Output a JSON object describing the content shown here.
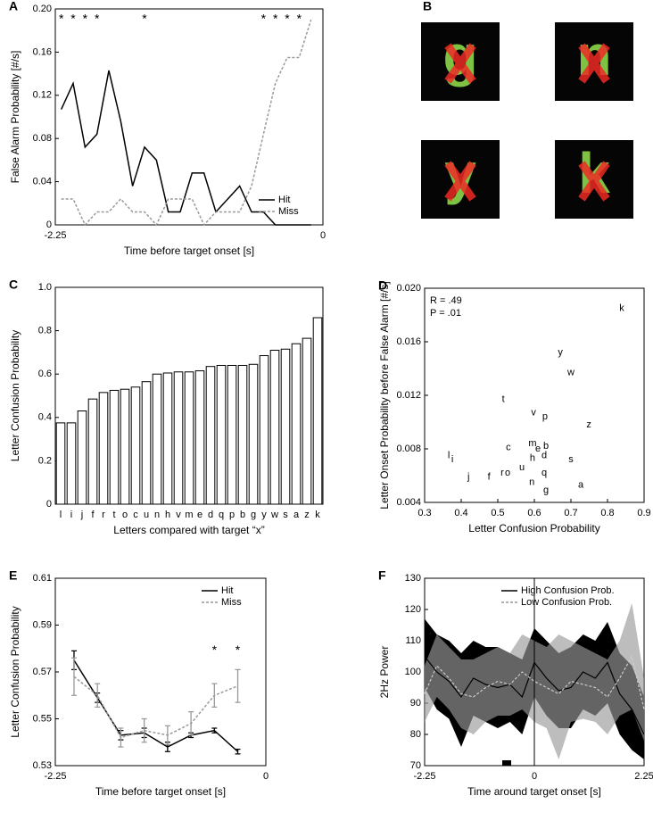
{
  "chart_data": [
    {
      "type": "line",
      "panel": "A",
      "x": [
        -2.2,
        -2.1,
        -2,
        -1.9,
        -1.8,
        -1.7,
        -1.6,
        -1.5,
        -1.4,
        -1.3,
        -1.2,
        -1.1,
        -1,
        -0.9,
        -0.8,
        -0.7,
        -0.6,
        -0.5,
        -0.4,
        -0.3,
        -0.2,
        -0.1
      ],
      "series": [
        {
          "name": "Hit",
          "color": "#000000",
          "style": "solid",
          "values": [
            0.107,
            0.131,
            0.072,
            0.084,
            0.143,
            0.096,
            0.036,
            0.072,
            0.06,
            0.012,
            0.012,
            0.048,
            0.048,
            0.012,
            0.024,
            0.036,
            0.012,
            0.012,
            0,
            0,
            0,
            0
          ]
        },
        {
          "name": "Miss",
          "color": "#999999",
          "style": "dashed",
          "values": [
            0.024,
            0.024,
            0,
            0.012,
            0.012,
            0.024,
            0.012,
            0.012,
            0,
            0.024,
            0.024,
            0.024,
            0,
            0.012,
            0.012,
            0.012,
            0.036,
            0.084,
            0.131,
            0.155,
            0.155,
            0.19
          ]
        }
      ],
      "xlim": [
        -2.25,
        0
      ],
      "ylim": [
        0,
        0.2
      ],
      "xticks": [
        -2.25,
        0
      ],
      "yticks": [
        0,
        0.04,
        0.08,
        0.12,
        0.16,
        {
          "value": 0.2,
          "label": "0.20"
        }
      ],
      "x_label": "Time before target onset [s]",
      "y_label": "False Alarm Probability [#/s]",
      "legend": "lower right",
      "annotations": [
        {
          "text": "*",
          "x": -2.2
        },
        {
          "text": "*",
          "x": -2.1
        },
        {
          "text": "*",
          "x": -2
        },
        {
          "text": "*",
          "x": -1.9
        },
        {
          "text": "*",
          "x": -1.5
        },
        {
          "text": "*",
          "x": -0.5
        },
        {
          "text": "*",
          "x": -0.4
        },
        {
          "text": "*",
          "x": -0.3
        },
        {
          "text": "*",
          "x": -0.2
        }
      ]
    },
    {
      "type": "image",
      "panel": "B",
      "letters": [
        "g",
        "n",
        "y",
        "k"
      ]
    },
    {
      "type": "bar",
      "panel": "C",
      "categories": [
        "l",
        "i",
        "j",
        "f",
        "r",
        "t",
        "o",
        "c",
        "u",
        "n",
        "h",
        "v",
        "m",
        "e",
        "d",
        "q",
        "p",
        "b",
        "g",
        "y",
        "w",
        "s",
        "a",
        "z",
        "k"
      ],
      "values": [
        0.375,
        0.375,
        0.43,
        0.485,
        0.515,
        0.525,
        0.53,
        0.54,
        0.565,
        0.6,
        0.605,
        0.61,
        0.61,
        0.615,
        0.635,
        0.64,
        0.64,
        0.64,
        0.645,
        0.685,
        0.71,
        0.715,
        0.74,
        0.765,
        0.86
      ],
      "color": "#ffffff",
      "ylim": [
        0,
        1
      ],
      "yticks": [
        0,
        0.2,
        0.4,
        0.6,
        0.8,
        {
          "value": 1,
          "label": "1.0"
        }
      ],
      "x_label": "Letters compared with target “x”",
      "y_label": "Letter Confusion Probability"
    },
    {
      "type": "scatter",
      "panel": "D",
      "labels": [
        "k",
        "y",
        "w",
        "t",
        "v",
        "p",
        "z",
        "c",
        "m",
        "e",
        "b",
        "d",
        "h",
        "s",
        "l",
        "i",
        "u",
        "r",
        "o",
        "q",
        "f",
        "j",
        "n",
        "a",
        "g"
      ],
      "x": [
        0.839,
        0.671,
        0.7,
        0.515,
        0.598,
        0.629,
        0.749,
        0.529,
        0.595,
        0.61,
        0.632,
        0.627,
        0.595,
        0.7,
        0.366,
        0.376,
        0.566,
        0.512,
        0.527,
        0.627,
        0.476,
        0.42,
        0.593,
        0.727,
        0.632
      ],
      "values": [
        0.0185,
        0.0152,
        0.0137,
        0.0117,
        0.0107,
        0.0104,
        0.0098,
        0.0081,
        0.0084,
        0.008,
        0.0082,
        0.0075,
        0.0073,
        0.0072,
        0.0075,
        0.0072,
        0.0066,
        0.0062,
        0.0062,
        0.0062,
        0.0059,
        0.0059,
        0.0055,
        0.0053,
        0.0049
      ],
      "xlim": [
        0.3,
        0.9
      ],
      "ylim": [
        0.004,
        0.02
      ],
      "xticks": [
        0.3,
        0.4,
        0.5,
        0.6,
        0.7,
        0.8,
        0.9
      ],
      "yticks": [
        0.004,
        0.008,
        0.012,
        0.016,
        {
          "value": 0.02,
          "label": "0.020"
        }
      ],
      "x_label": "Letter Confusion Probability",
      "y_label": "Letter Onset Probability before False Alarm [#/s]",
      "annotations": [
        {
          "text": "R = .49"
        },
        {
          "text": "P = .01"
        }
      ]
    },
    {
      "type": "line",
      "panel": "E",
      "x": [
        -2.05,
        -1.8,
        -1.55,
        -1.3,
        -1.05,
        -0.8,
        -0.55,
        -0.3
      ],
      "series": [
        {
          "name": "Hit",
          "color": "#000000",
          "style": "solid",
          "values": [
            0.575,
            0.559,
            0.543,
            0.544,
            0.538,
            0.543,
            0.545,
            0.536
          ],
          "errors": [
            0.004,
            0.002,
            0.002,
            0.002,
            0.002,
            0.001,
            0.001,
            0.001
          ]
        },
        {
          "name": "Miss",
          "color": "#999999",
          "style": "dashed",
          "values": [
            0.568,
            0.56,
            0.542,
            0.545,
            0.543,
            0.548,
            0.56,
            0.564
          ],
          "errors": [
            0.008,
            0.005,
            0.004,
            0.005,
            0.004,
            0.005,
            0.005,
            0.007
          ]
        }
      ],
      "xlim": [
        -2.25,
        0
      ],
      "ylim": [
        0.53,
        0.61
      ],
      "xticks": [
        -2.25,
        0
      ],
      "yticks": [
        0.53,
        0.55,
        0.57,
        0.59,
        0.61
      ],
      "x_label": "Time before target onset [s]",
      "y_label": "Letter Confusion Probability",
      "legend": "upper right",
      "annotations": [
        {
          "text": "*",
          "x": -0.55,
          "y": 0.579
        },
        {
          "text": "*",
          "x": -0.3,
          "y": 0.579
        }
      ]
    },
    {
      "type": "band",
      "panel": "F",
      "x": [
        -2.25,
        -2,
        -1.75,
        -1.5,
        -1.25,
        -1,
        -0.75,
        -0.5,
        -0.25,
        0,
        0.25,
        0.5,
        0.75,
        1,
        1.25,
        1.5,
        1.75,
        2,
        2.25
      ],
      "series": [
        {
          "name": "High Confusion Prob.",
          "color": "#000000",
          "band_color": "#000000",
          "band_opacity": 1,
          "style": "solid",
          "values": [
            105,
            100,
            97,
            92,
            98,
            96,
            95,
            96,
            92,
            103,
            98,
            94,
            95,
            100,
            98,
            103,
            93,
            88,
            80
          ],
          "lower": [
            95,
            88,
            85,
            76,
            86,
            84,
            82,
            84,
            80,
            92,
            86,
            82,
            82,
            88,
            86,
            90,
            80,
            75,
            72
          ],
          "upper": [
            117,
            112,
            110,
            106,
            110,
            108,
            108,
            106,
            104,
            114,
            110,
            106,
            108,
            112,
            110,
            116,
            106,
            102,
            92
          ]
        },
        {
          "name": "Low Confusion Prob.",
          "color": "#cccccc",
          "band_color": "#999999",
          "band_opacity": 0.65,
          "style": "dashed",
          "values": [
            93,
            102,
            98,
            93,
            92,
            95,
            97,
            96,
            100,
            97,
            95,
            93,
            97,
            96,
            95,
            92,
            98,
            105,
            88
          ],
          "lower": [
            84,
            92,
            88,
            82,
            80,
            84,
            86,
            86,
            88,
            84,
            82,
            72,
            84,
            85,
            84,
            80,
            86,
            88,
            78
          ],
          "upper": [
            102,
            112,
            108,
            104,
            104,
            106,
            108,
            106,
            112,
            110,
            108,
            112,
            110,
            108,
            106,
            104,
            110,
            122,
            98
          ]
        }
      ],
      "xlim": [
        -2.25,
        2.25
      ],
      "ylim": [
        70,
        130
      ],
      "xticks": [
        -2.25,
        0,
        2.25
      ],
      "yticks": [
        70,
        80,
        90,
        100,
        110,
        120,
        130
      ],
      "x_label": "Time around target onset [s]",
      "y_label": "2Hz Power",
      "legend": "upper right"
    }
  ]
}
